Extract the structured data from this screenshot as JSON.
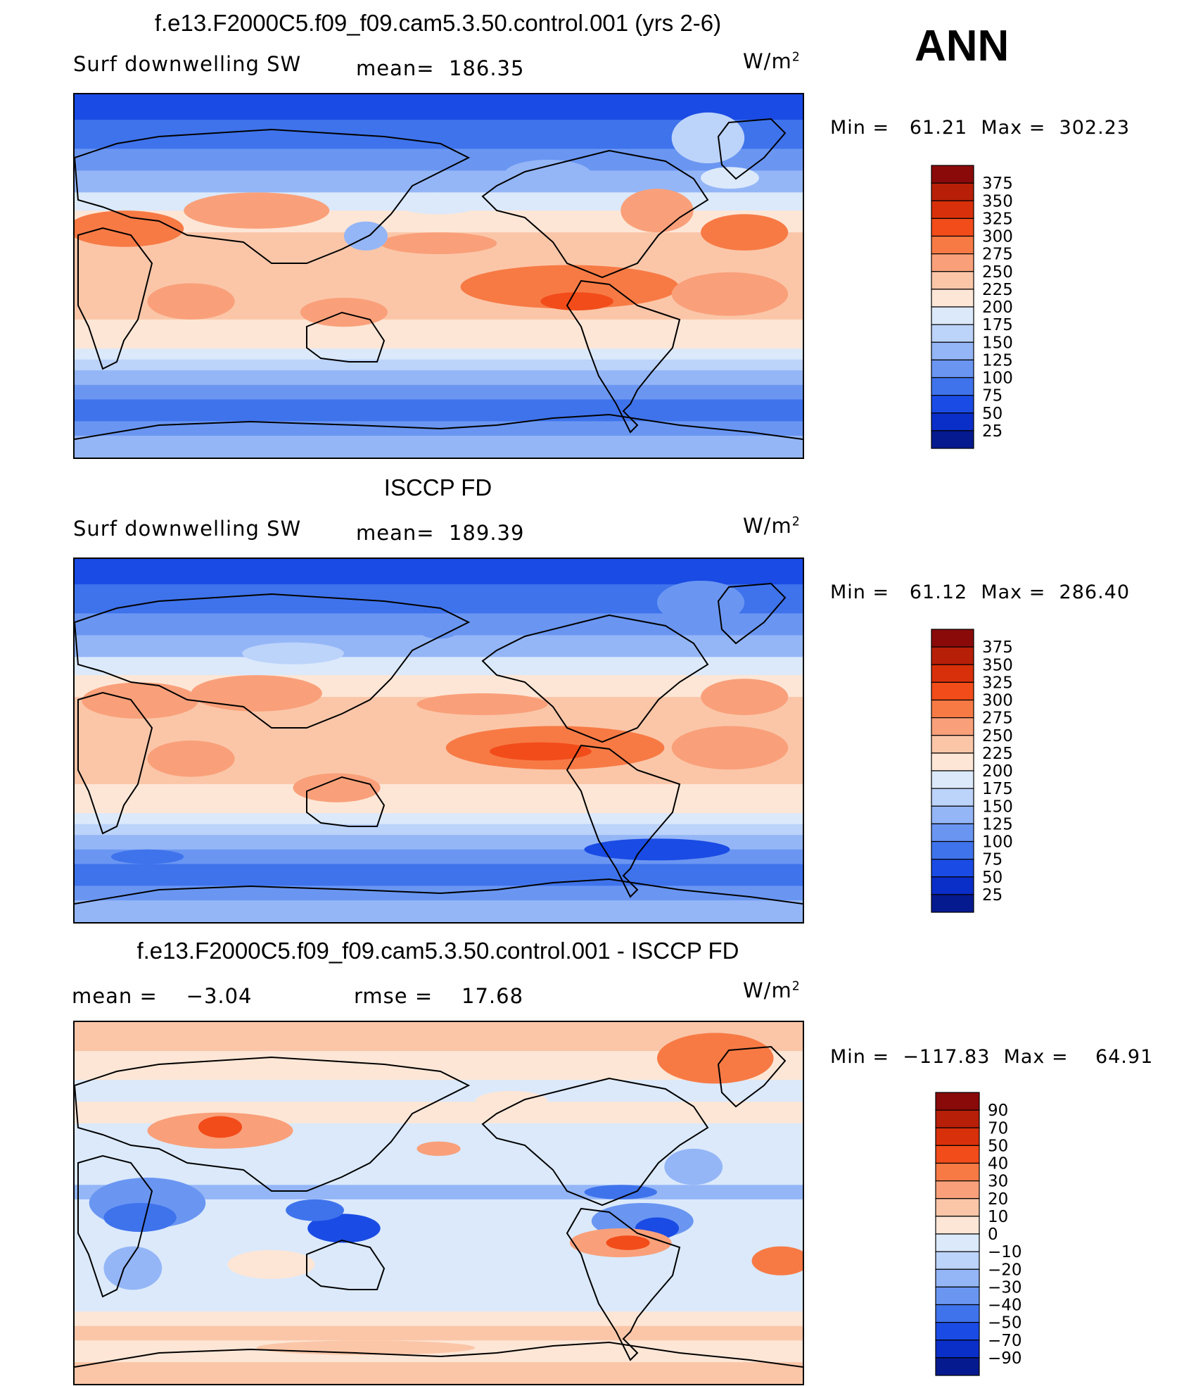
{
  "season": "ANN",
  "units": "W/m",
  "units_sup": "2",
  "chart_data": [
    {
      "type": "heatmap",
      "title": "f.e13.F2000C5.f09_f09.cam5.3.50.control.001 (yrs 2-6)",
      "variable": "Surf downwelling SW",
      "stat_left_label": "",
      "mean_label": "mean=",
      "mean": "186.35",
      "min_label": "Min =",
      "min": "61.21",
      "max_label": "Max =",
      "max": "302.23",
      "colorbar_levels": [
        "375",
        "350",
        "325",
        "300",
        "275",
        "250",
        "225",
        "200",
        "175",
        "150",
        "125",
        "100",
        "75",
        "50",
        "25"
      ],
      "colorbar_colors": [
        "#8a0a0a",
        "#b81f08",
        "#d8300a",
        "#f24c1a",
        "#f77a45",
        "#f9a07a",
        "#fbc6a8",
        "#fde6d6",
        "#dbe9fb",
        "#bcd3fa",
        "#94b6f7",
        "#6a96f2",
        "#3f73ec",
        "#1a4be4",
        "#0a2ec8",
        "#061a8f"
      ],
      "field_style": "model"
    },
    {
      "type": "heatmap",
      "title": "ISCCP FD",
      "variable": "Surf downwelling SW",
      "stat_left_label": "",
      "mean_label": "mean=",
      "mean": "189.39",
      "min_label": "Min =",
      "min": "61.12",
      "max_label": "Max =",
      "max": "286.40",
      "colorbar_levels": [
        "375",
        "350",
        "325",
        "300",
        "275",
        "250",
        "225",
        "200",
        "175",
        "150",
        "125",
        "100",
        "75",
        "50",
        "25"
      ],
      "colorbar_colors": [
        "#8a0a0a",
        "#b81f08",
        "#d8300a",
        "#f24c1a",
        "#f77a45",
        "#f9a07a",
        "#fbc6a8",
        "#fde6d6",
        "#dbe9fb",
        "#bcd3fa",
        "#94b6f7",
        "#6a96f2",
        "#3f73ec",
        "#1a4be4",
        "#0a2ec8",
        "#061a8f"
      ],
      "field_style": "obs"
    },
    {
      "type": "heatmap",
      "title": "f.e13.F2000C5.f09_f09.cam5.3.50.control.001 - ISCCP FD",
      "variable": "",
      "stat_left_label": "mean =",
      "stat_left_value": "−3.04",
      "mean_label": "rmse =",
      "mean": "17.68",
      "min_label": "Min =",
      "min": "−117.83",
      "max_label": "Max =",
      "max": "64.91",
      "colorbar_levels": [
        "90",
        "70",
        "50",
        "40",
        "30",
        "20",
        "10",
        "0",
        "−10",
        "−20",
        "−30",
        "−40",
        "−50",
        "−70",
        "−90"
      ],
      "colorbar_colors": [
        "#8a0a0a",
        "#b81f08",
        "#d8300a",
        "#f24c1a",
        "#f77a45",
        "#f9a07a",
        "#fbc6a8",
        "#fde6d6",
        "#dbe9fb",
        "#bcd3fa",
        "#94b6f7",
        "#6a96f2",
        "#3f73ec",
        "#1a4be4",
        "#0a2ec8",
        "#061a8f"
      ],
      "field_style": "diff"
    }
  ]
}
